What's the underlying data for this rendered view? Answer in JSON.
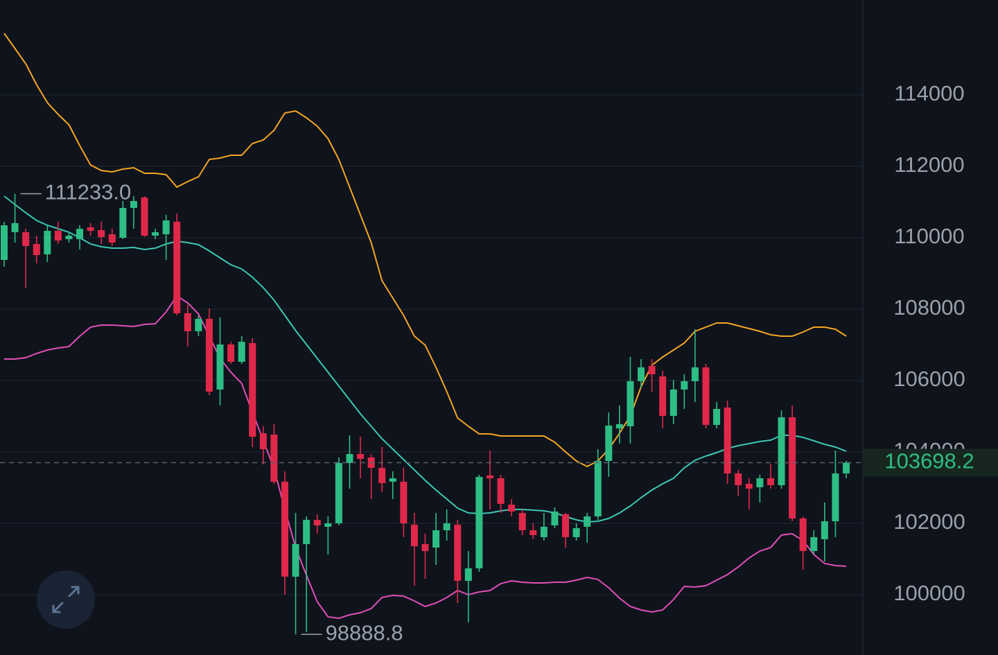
{
  "chart_data": {
    "type": "candlestick",
    "up_color": "#2ebd85",
    "down_color": "#e0294a",
    "open": [
      109379,
      110155,
      110155,
      109825,
      109534,
      110194,
      109961,
      109961,
      110291,
      110214,
      110097,
      110000,
      110835,
      111126,
      110058,
      110097,
      110447,
      107884,
      107379,
      107728,
      105748,
      107010,
      106524,
      107049,
      104524,
      104486,
      103165,
      100505,
      101418,
      102097,
      101903,
      102000,
      103689,
      103942,
      103845,
      103554,
      103165,
      103165,
      101961,
      101418,
      101321,
      101806,
      101961,
      100388,
      100738,
      103340,
      103262,
      102524,
      102291,
      101806,
      101612,
      101942,
      102253,
      101612,
      101903,
      102194,
      103748,
      104660,
      104719,
      105981,
      106408,
      106117,
      105010,
      105748,
      105981,
      106369,
      104757,
      105243,
      103398,
      103107,
      103010,
      103262,
      103068,
      104971,
      102136,
      101223,
      101554,
      102058,
      103398
    ],
    "high": [
      110447,
      111233,
      110252,
      110058,
      110349,
      110447,
      110155,
      110349,
      110408,
      110447,
      110252,
      111029,
      111165,
      111165,
      110252,
      110641,
      110680,
      108117,
      107825,
      108019,
      107767,
      107087,
      107243,
      107184,
      104719,
      104777,
      103456,
      102291,
      102194,
      102253,
      102194,
      103845,
      104466,
      104427,
      103942,
      104136,
      103456,
      103554,
      102291,
      101709,
      102291,
      102389,
      102097,
      101223,
      103359,
      104039,
      103359,
      102680,
      102389,
      102000,
      102291,
      102447,
      102291,
      102000,
      102291,
      104078,
      105107,
      105301,
      106660,
      106602,
      106602,
      106272,
      106019,
      106175,
      107437,
      106466,
      105398,
      105437,
      103500,
      103262,
      103359,
      103651,
      105165,
      105301,
      102194,
      101806,
      102583,
      104039,
      103748
    ],
    "low": [
      109184,
      109864,
      108602,
      109282,
      109320,
      109825,
      109864,
      109670,
      110058,
      109825,
      109767,
      109961,
      110252,
      110019,
      109961,
      109379,
      107825,
      106951,
      107243,
      105592,
      105301,
      106466,
      106466,
      104136,
      103651,
      103107,
      100000,
      98888.8,
      98950,
      101709,
      101126,
      101942,
      102971,
      103262,
      102680,
      102874,
      102680,
      101612,
      100253,
      100446,
      100835,
      101515,
      99767,
      99224,
      100641,
      102389,
      102291,
      102194,
      101670,
      101554,
      101515,
      101864,
      101321,
      101515,
      101457,
      102097,
      103301,
      104233,
      104233,
      105786,
      105689,
      104660,
      104777,
      105204,
      105398,
      104660,
      104660,
      103107,
      102777,
      102389,
      102583,
      102971,
      102971,
      102058,
      100699,
      101126,
      100932,
      101612,
      103262
    ],
    "close": [
      110349,
      110408,
      109767,
      109515,
      110194,
      109922,
      110058,
      110252,
      110194,
      110019,
      109864,
      110835,
      111029,
      110058,
      110155,
      110485,
      107884,
      107379,
      107728,
      105689,
      107010,
      106524,
      107087,
      104427,
      104078,
      103165,
      100505,
      101418,
      102097,
      101942,
      102000,
      103689,
      103942,
      103806,
      103554,
      103126,
      103262,
      102000,
      101359,
      101223,
      101806,
      102000,
      100388,
      100738,
      103301,
      103262,
      102544,
      102331,
      101806,
      101670,
      101903,
      102331,
      101612,
      101864,
      102194,
      103748,
      104738,
      104777,
      105981,
      106369,
      106175,
      105010,
      105748,
      105981,
      106369,
      104757,
      105204,
      103398,
      103068,
      102971,
      103262,
      103068,
      104971,
      102136,
      101223,
      101612,
      102058,
      103398,
      103698.2
    ],
    "bands": [
      {
        "color": "#f5a623",
        "values": [
          115728,
          115301,
          114874,
          114291,
          113786,
          113456,
          113165,
          112582,
          112039,
          111883,
          111845,
          111922,
          111961,
          111806,
          111806,
          111767,
          111417,
          111573,
          111709,
          112194,
          112233,
          112311,
          112311,
          112641,
          112738,
          113010,
          113495,
          113553,
          113359,
          113126,
          112777,
          112194,
          111417,
          110641,
          109864,
          108796,
          108311,
          107825,
          107243,
          106990,
          106369,
          105689,
          104952,
          104719,
          104505,
          104505,
          104447,
          104447,
          104447,
          104447,
          104447,
          104272,
          104000,
          103748,
          103592,
          103748,
          104078,
          104524,
          105010,
          105825,
          106427,
          106660,
          106854,
          107049,
          107379,
          107495,
          107612,
          107612,
          107534,
          107456,
          107379,
          107282,
          107243,
          107243,
          107359,
          107495,
          107495,
          107437,
          107243
        ]
      },
      {
        "color": "#3cc8b4",
        "values": [
          111165,
          110932,
          110699,
          110485,
          110349,
          110252,
          110155,
          110000,
          109825,
          109748,
          109709,
          109709,
          109728,
          109670,
          109709,
          109825,
          109903,
          109864,
          109806,
          109631,
          109437,
          109243,
          109126,
          108893,
          108602,
          108252,
          107825,
          107398,
          107010,
          106621,
          106233,
          105845,
          105456,
          105068,
          104719,
          104369,
          104078,
          103786,
          103495,
          103204,
          102932,
          102680,
          102427,
          102291,
          102272,
          102291,
          102350,
          102389,
          102389,
          102369,
          102350,
          102291,
          102194,
          102097,
          102039,
          102058,
          102136,
          102291,
          102486,
          102719,
          102932,
          103107,
          103262,
          103554,
          103767,
          103884,
          103981,
          104097,
          104175,
          104233,
          104291,
          104330,
          104466,
          104466,
          104408,
          104311,
          104214,
          104136,
          104020
        ]
      },
      {
        "color": "#e04fb8",
        "values": [
          106602,
          106602,
          106641,
          106757,
          106854,
          106913,
          106951,
          107243,
          107495,
          107553,
          107553,
          107534,
          107515,
          107573,
          107592,
          107922,
          108369,
          108175,
          107864,
          107243,
          106621,
          106233,
          105922,
          105107,
          104330,
          103534,
          102389,
          101321,
          100544,
          99806,
          99379,
          99340,
          99437,
          99495,
          99612,
          99923,
          99981,
          99961,
          99826,
          99670,
          99767,
          99923,
          100117,
          100000,
          100078,
          100117,
          100311,
          100388,
          100350,
          100330,
          100330,
          100350,
          100350,
          100408,
          100486,
          100427,
          100194,
          99903,
          99670,
          99573,
          99515,
          99573,
          99864,
          100233,
          100214,
          100253,
          100408,
          100563,
          100777,
          101029,
          101223,
          101321,
          101670,
          101709,
          101515,
          101126,
          100874,
          100816,
          100796
        ]
      }
    ],
    "high_label": {
      "value": 111233,
      "label": "111233.0"
    },
    "low_label": 98888.8,
    "last_price": 103698.2,
    "ylim": [
      98311,
      116660
    ],
    "yticks": [
      100000,
      102000,
      104000,
      106000,
      108000,
      110000,
      112000,
      114000
    ],
    "grid": true
  }
}
